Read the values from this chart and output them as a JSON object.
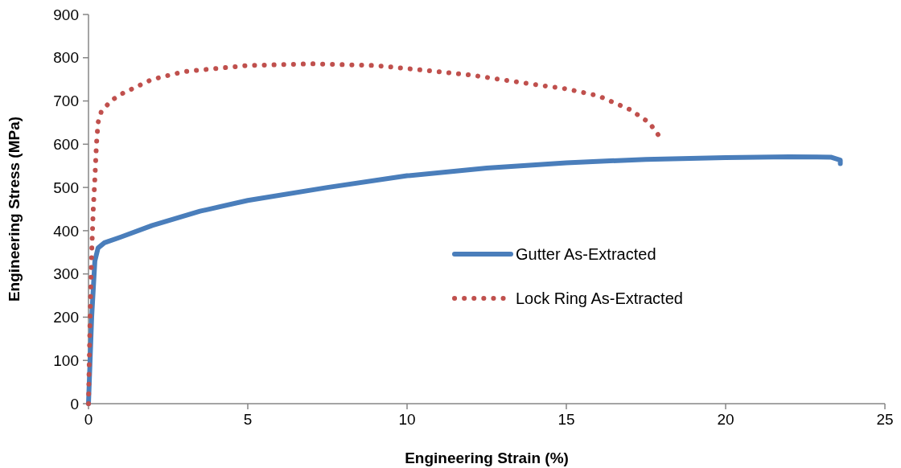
{
  "chart_data": {
    "type": "line",
    "xlabel": "Engineering Strain (%)",
    "ylabel": "Engineering Stress (MPa)",
    "xlim": [
      0,
      25
    ],
    "xticks": [
      0,
      5,
      10,
      15,
      20,
      25
    ],
    "ylim": [
      0,
      900
    ],
    "yticks": [
      0,
      100,
      200,
      300,
      400,
      500,
      600,
      700,
      800,
      900
    ],
    "grid": false,
    "legend": "right",
    "marker": "none",
    "series": [
      {
        "name": "Gutter As-Extracted",
        "color": "#4a7ebb",
        "line_style": "solid",
        "x": [
          0,
          0.1,
          0.2,
          0.3,
          0.5,
          1,
          2,
          3.5,
          5,
          7.5,
          10,
          12.5,
          15,
          17.5,
          20,
          22,
          23.3,
          23.6,
          23.6
        ],
        "values": [
          0,
          200,
          330,
          360,
          372,
          385,
          412,
          445,
          470,
          500,
          527,
          545,
          557,
          565,
          569,
          571,
          570,
          563,
          555
        ]
      },
      {
        "name": "Lock Ring As-Extracted",
        "color": "#c0504d",
        "line_style": "dotted",
        "x": [
          0,
          0.05,
          0.1,
          0.15,
          0.2,
          0.25,
          0.3,
          0.4,
          0.7,
          1,
          2,
          3,
          5,
          7,
          9,
          10,
          12,
          14,
          15,
          16,
          17,
          17.6,
          18
        ],
        "values": [
          0,
          200,
          350,
          450,
          520,
          600,
          650,
          675,
          700,
          715,
          750,
          768,
          782,
          786,
          782,
          775,
          760,
          738,
          728,
          712,
          680,
          650,
          610
        ]
      }
    ]
  }
}
